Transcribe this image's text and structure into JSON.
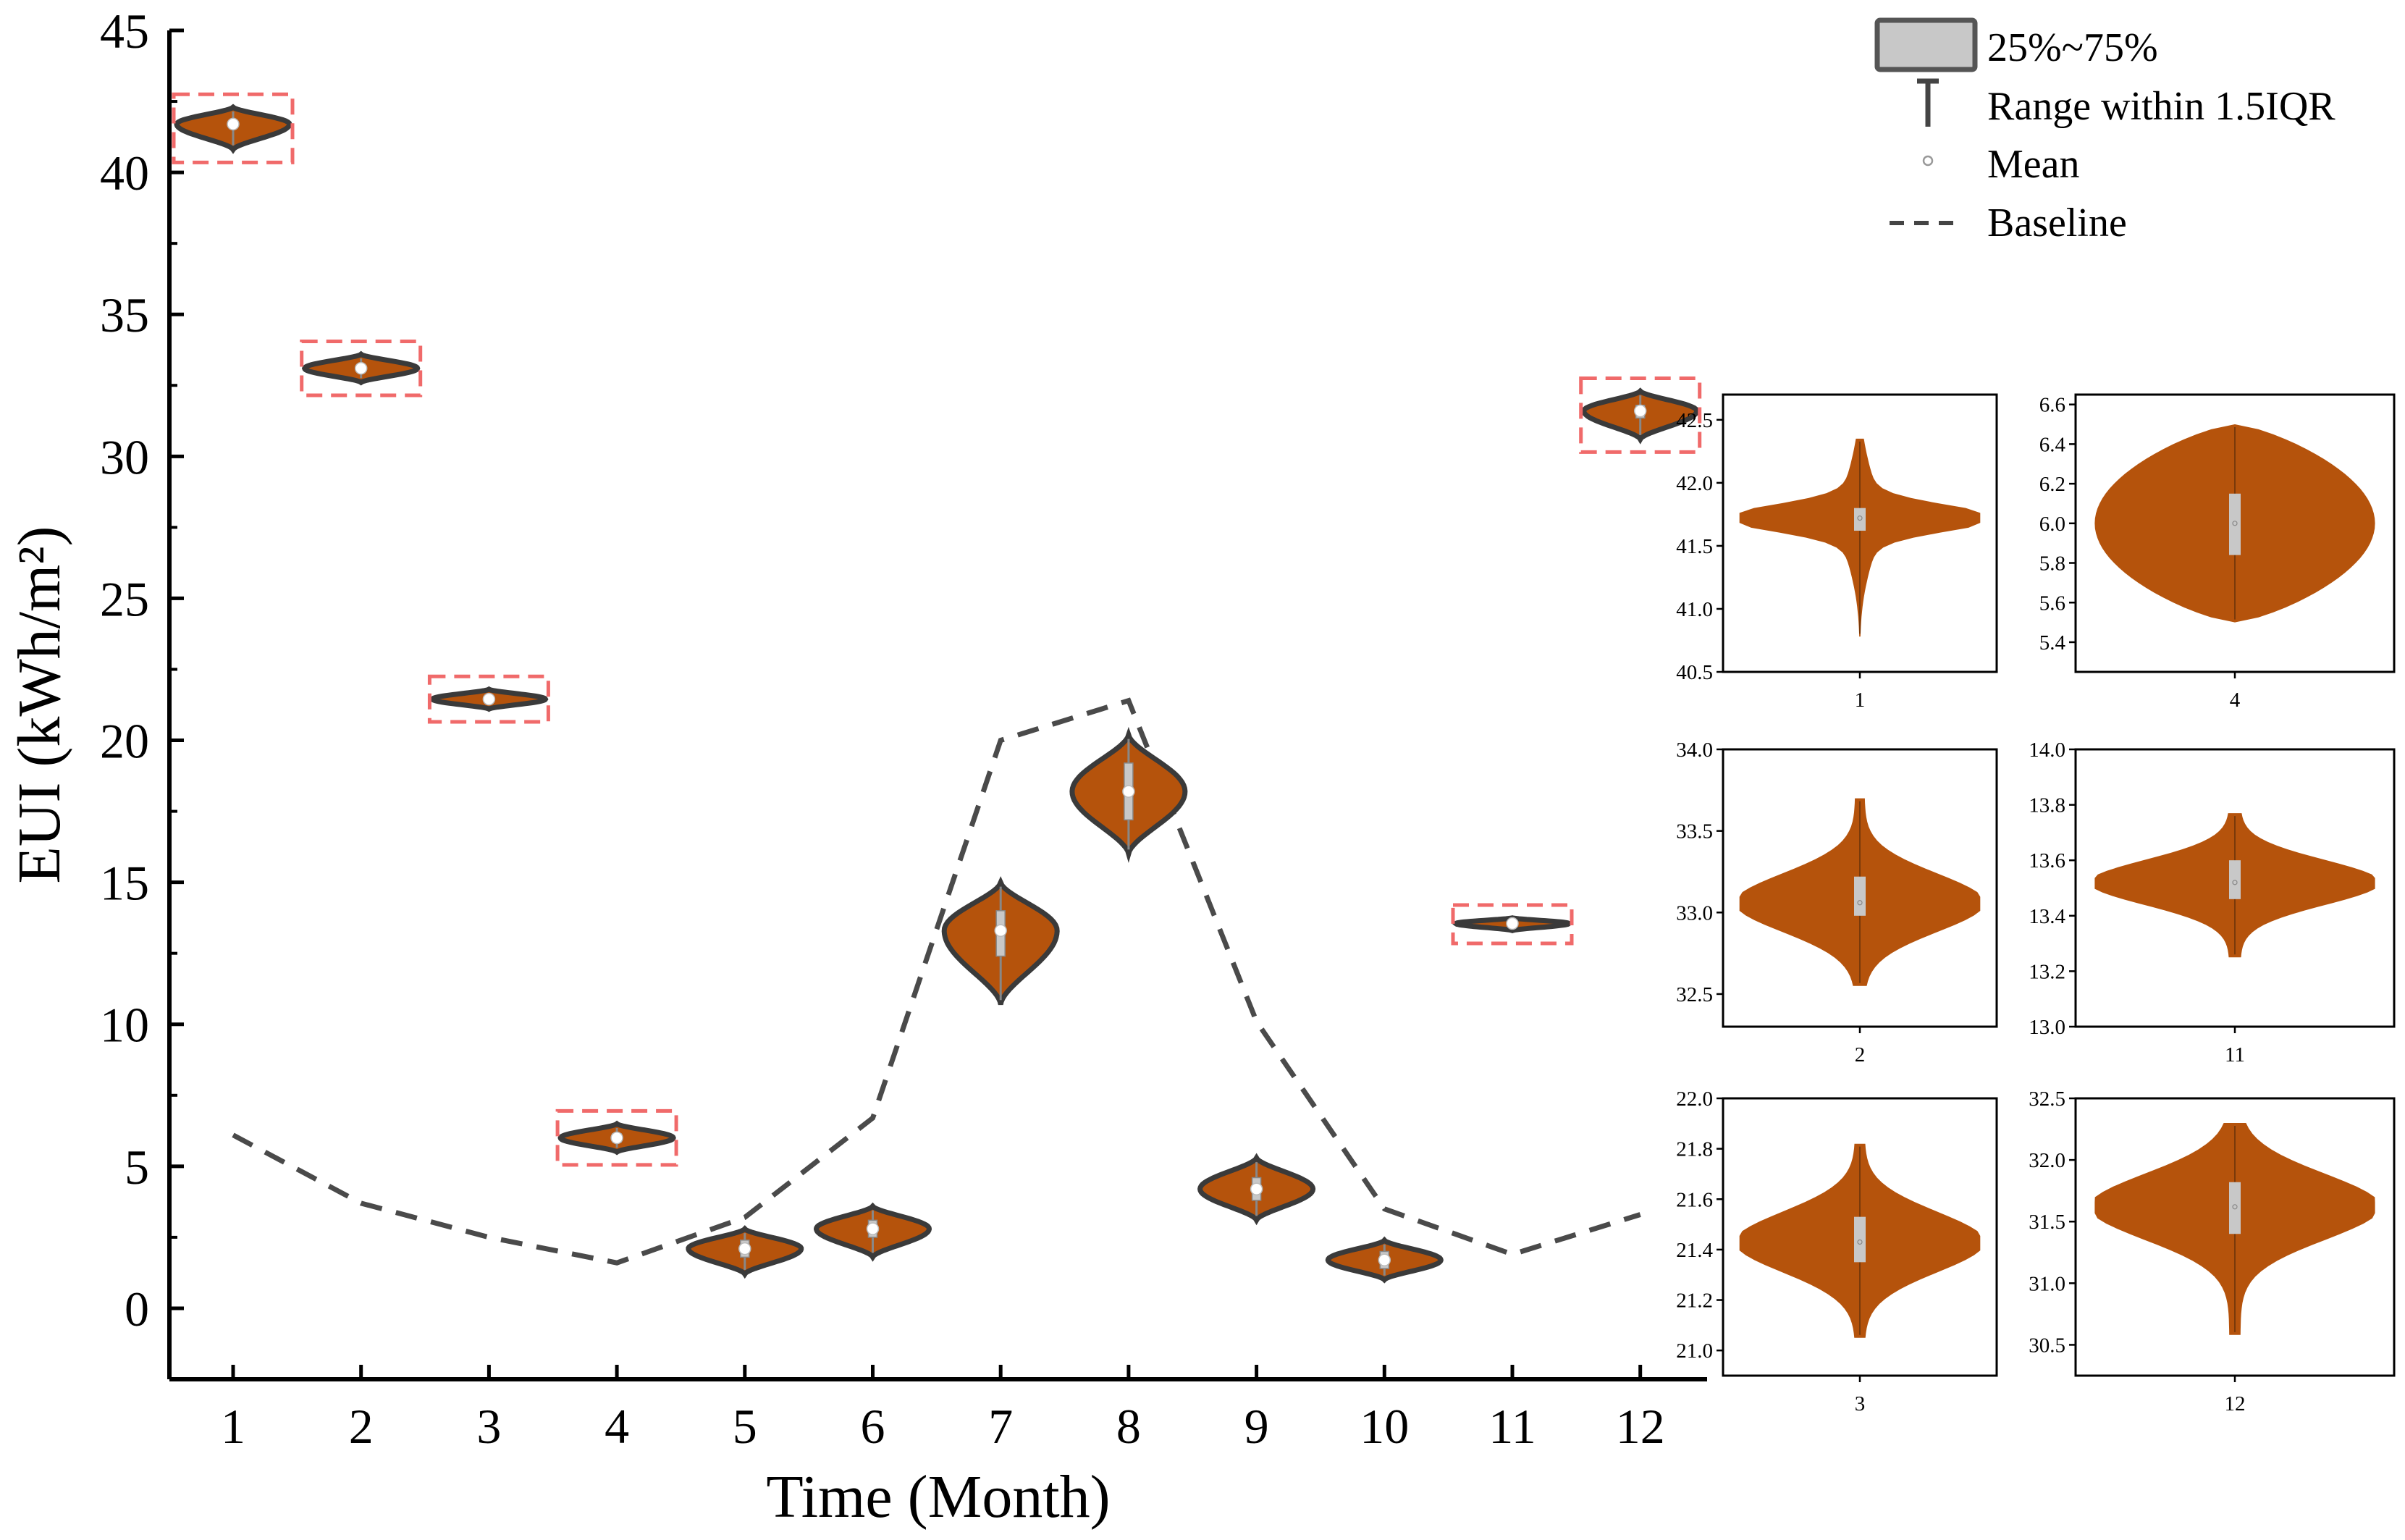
{
  "colors": {
    "violin_fill": "#b5530c",
    "violin_edge": "#3a3a3a",
    "box_fill": "#c8c8c8",
    "baseline": "#4a4a4a",
    "highlight": "#f06a6a",
    "axis": "#000000"
  },
  "legend": {
    "iqr_label": "25%~75%",
    "whisker_label": "Range within 1.5IQR",
    "mean_label": "Mean",
    "baseline_label": "Baseline"
  },
  "chart_data": {
    "type": "violin",
    "xlabel": "Time (Month)",
    "ylabel": "EUI (kWh/m²)",
    "ylim": [
      -2.5,
      45
    ],
    "yticks": [
      0,
      5,
      10,
      15,
      20,
      25,
      30,
      35,
      40,
      45
    ],
    "categories": [
      "1",
      "2",
      "3",
      "4",
      "5",
      "6",
      "7",
      "8",
      "9",
      "10",
      "11",
      "12"
    ],
    "violins": [
      {
        "month": 1,
        "min": 40.8,
        "q1": 41.6,
        "mean": 41.7,
        "q3": 41.8,
        "max": 42.3
      },
      {
        "month": 2,
        "min": 32.6,
        "q1": 33.0,
        "mean": 33.1,
        "q3": 33.2,
        "max": 33.6
      },
      {
        "month": 3,
        "min": 21.1,
        "q1": 21.35,
        "mean": 21.45,
        "q3": 21.55,
        "max": 21.8
      },
      {
        "month": 4,
        "min": 5.5,
        "q1": 5.85,
        "mean": 6.0,
        "q3": 6.15,
        "max": 6.5
      },
      {
        "month": 5,
        "min": 1.2,
        "q1": 1.8,
        "mean": 2.1,
        "q3": 2.4,
        "max": 2.8
      },
      {
        "month": 6,
        "min": 1.8,
        "q1": 2.5,
        "mean": 2.8,
        "q3": 3.1,
        "max": 3.6
      },
      {
        "month": 7,
        "min": 10.7,
        "q1": 12.4,
        "mean": 13.3,
        "q3": 14.0,
        "max": 15.0
      },
      {
        "month": 8,
        "min": 16.0,
        "q1": 17.2,
        "mean": 18.2,
        "q3": 19.2,
        "max": 20.2
      },
      {
        "month": 9,
        "min": 3.1,
        "q1": 3.8,
        "mean": 4.2,
        "q3": 4.6,
        "max": 5.3
      },
      {
        "month": 10,
        "min": 1.0,
        "q1": 1.4,
        "mean": 1.7,
        "q3": 2.0,
        "max": 2.4
      },
      {
        "month": 11,
        "min": 13.3,
        "q1": 13.47,
        "mean": 13.55,
        "q3": 13.62,
        "max": 13.75
      },
      {
        "month": 12,
        "min": 30.6,
        "q1": 31.35,
        "mean": 31.6,
        "q3": 31.8,
        "max": 32.3
      }
    ],
    "highlighted_months": [
      1,
      2,
      3,
      4,
      11,
      12
    ],
    "baseline": {
      "months": [
        1,
        2,
        3,
        4,
        5,
        6,
        7,
        8,
        9,
        10,
        11,
        12
      ],
      "values": [
        6.1,
        3.7,
        2.5,
        1.6,
        3.2,
        6.7,
        20.0,
        21.4,
        10.1,
        3.5,
        1.9,
        3.3
      ]
    },
    "insets": [
      {
        "month_label": "1",
        "ylim": [
          40.5,
          42.7
        ],
        "yticks": [
          40.5,
          41.0,
          41.5,
          42.0,
          42.5
        ],
        "tick_labels": [
          "40.5",
          "41.0",
          "41.5",
          "42.0",
          "42.5"
        ],
        "min": 40.78,
        "q1": 41.62,
        "q3": 41.8,
        "mean": 41.72,
        "max": 42.35,
        "shape": "narrow"
      },
      {
        "month_label": "4",
        "ylim": [
          5.25,
          6.65
        ],
        "yticks": [
          5.4,
          5.6,
          5.8,
          6.0,
          6.2,
          6.4,
          6.6
        ],
        "tick_labels": [
          "5.4",
          "5.6",
          "5.8",
          "6.0",
          "6.2",
          "6.4",
          "6.6"
        ],
        "min": 5.5,
        "q1": 5.84,
        "q3": 6.15,
        "mean": 6.0,
        "max": 6.5,
        "shape": "wide"
      },
      {
        "month_label": "2",
        "ylim": [
          32.3,
          34.0
        ],
        "yticks": [
          32.5,
          33.0,
          33.5,
          34.0
        ],
        "tick_labels": [
          "32.5",
          "33.0",
          "33.5",
          "34.0"
        ],
        "min": 32.55,
        "q1": 32.98,
        "q3": 33.22,
        "mean": 33.06,
        "max": 33.7,
        "shape": "mid"
      },
      {
        "month_label": "11",
        "ylim": [
          13.0,
          14.0
        ],
        "yticks": [
          13.0,
          13.2,
          13.4,
          13.6,
          13.8,
          14.0
        ],
        "tick_labels": [
          "13.0",
          "13.2",
          "13.4",
          "13.6",
          "13.8",
          "14.0"
        ],
        "min": 13.25,
        "q1": 13.46,
        "q3": 13.6,
        "mean": 13.52,
        "max": 13.77,
        "shape": "mid"
      },
      {
        "month_label": "3",
        "ylim": [
          20.9,
          22.0
        ],
        "yticks": [
          21.0,
          21.2,
          21.4,
          21.6,
          21.8,
          22.0
        ],
        "tick_labels": [
          "21.0",
          "21.2",
          "21.4",
          "21.6",
          "21.8",
          "22.0"
        ],
        "min": 21.05,
        "q1": 21.35,
        "q3": 21.53,
        "mean": 21.43,
        "max": 21.82,
        "shape": "mid"
      },
      {
        "month_label": "12",
        "ylim": [
          30.25,
          32.5
        ],
        "yticks": [
          30.5,
          31.0,
          31.5,
          32.0,
          32.5
        ],
        "tick_labels": [
          "30.5",
          "31.0",
          "31.5",
          "32.0",
          "32.5"
        ],
        "min": 30.58,
        "q1": 31.4,
        "q3": 31.82,
        "mean": 31.62,
        "max": 32.3,
        "shape": "mid"
      }
    ]
  }
}
